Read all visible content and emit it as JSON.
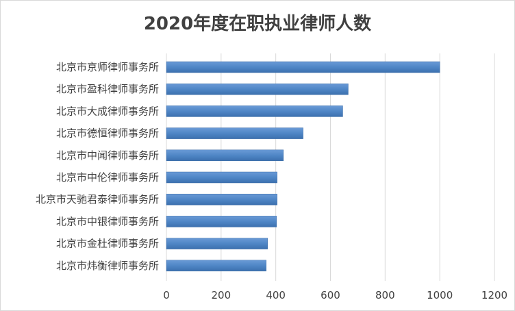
{
  "chart_data": {
    "type": "bar",
    "orientation": "horizontal",
    "title": "2020年度在职执业律师人数",
    "categories": [
      "北京市京师律师事务所",
      "北京市盈科律师事务所",
      "北京市大成律师事务所",
      "北京市德恒律师事务所",
      "北京市中闻律师事务所",
      "北京市中伦律师事务所",
      "北京市天驰君泰律师事务所",
      "北京市中银律师事务所",
      "北京市金杜律师事务所",
      "北京市炜衡律师事务所"
    ],
    "values": [
      1000,
      665,
      645,
      500,
      428,
      405,
      405,
      403,
      370,
      365
    ],
    "xlim": [
      0,
      1200
    ],
    "xticks": [
      "0",
      "200",
      "400",
      "600",
      "800",
      "1000",
      "1200"
    ],
    "grid": true,
    "bar_color": "#4f86c6"
  }
}
